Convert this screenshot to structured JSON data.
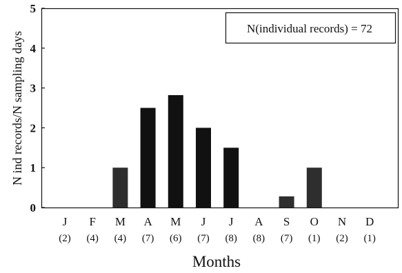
{
  "chart_data": {
    "type": "bar",
    "categories": [
      "J",
      "F",
      "M",
      "A",
      "M",
      "J",
      "J",
      "A",
      "S",
      "O",
      "N",
      "D"
    ],
    "category_counts": [
      "(2)",
      "(4)",
      "(4)",
      "(7)",
      "(6)",
      "(7)",
      "(8)",
      "(8)",
      "(7)",
      "(1)",
      "(2)",
      "(1)"
    ],
    "values": [
      0,
      0,
      1.0,
      2.5,
      2.82,
      2.0,
      1.5,
      0,
      0.28,
      1.0,
      0,
      0
    ],
    "bar_colors": [
      "#111111",
      "#111111",
      "#2e2e2e",
      "#111111",
      "#111111",
      "#111111",
      "#111111",
      "#111111",
      "#2e2e2e",
      "#2e2e2e",
      "#111111",
      "#111111"
    ],
    "title": "",
    "xlabel": "Months",
    "ylabel": "N ind records/N sampling days",
    "ylim": [
      0,
      5
    ],
    "yticks": [
      "0",
      "1",
      "2",
      "3",
      "4",
      "5"
    ],
    "annotation": "N(individual records) = 72",
    "legend_position": "top-right",
    "grid": false
  }
}
